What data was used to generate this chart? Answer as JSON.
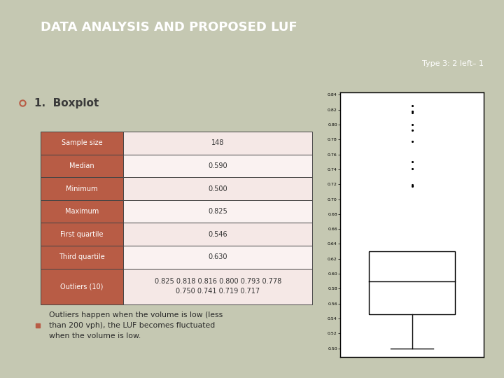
{
  "title": "DATA ANALYSIS AND PROPOSED LUF",
  "subtitle": "Type 3: 2 left– 1",
  "section_title": "1.  Boxplot",
  "bg_color": "#c5c8b2",
  "header_bg": "#504846",
  "header_fg": "#ffffff",
  "table_rows": [
    {
      "label": "Sample size",
      "value": "148"
    },
    {
      "label": "Median",
      "value": "0.590"
    },
    {
      "label": "Minimum",
      "value": "0.500"
    },
    {
      "label": "Maximum",
      "value": "0.825"
    },
    {
      "label": "First quartile",
      "value": "0.546"
    },
    {
      "label": "Third quartile",
      "value": "0.630"
    },
    {
      "label": "Outliers (10)",
      "value": "0.825 0.818 0.816 0.800 0.793 0.778\n0.750 0.741 0.719 0.717"
    }
  ],
  "row_label_bg": "#b85c45",
  "row_value_bg_odd": "#f5e8e6",
  "row_value_bg_even": "#faf2f1",
  "row_fg": "#ffffff",
  "value_fg": "#333333",
  "bullet_color": "#b85c45",
  "bullet_text": "Outliers happen when the volume is low (less\nthan 200 vph), the LUF becomes fluctuated\nwhen the volume is low.",
  "boxplot": {
    "median": 0.59,
    "q1": 0.546,
    "q3": 0.63,
    "whisker_low": 0.5,
    "outliers": [
      0.825,
      0.818,
      0.816,
      0.8,
      0.793,
      0.778,
      0.75,
      0.741,
      0.719,
      0.717
    ],
    "ylim_low": 0.488,
    "ylim_high": 0.843,
    "yticks": [
      0.5,
      0.52,
      0.54,
      0.56,
      0.58,
      0.6,
      0.62,
      0.64,
      0.66,
      0.68,
      0.7,
      0.72,
      0.74,
      0.76,
      0.78,
      0.8,
      0.82,
      0.84
    ]
  }
}
